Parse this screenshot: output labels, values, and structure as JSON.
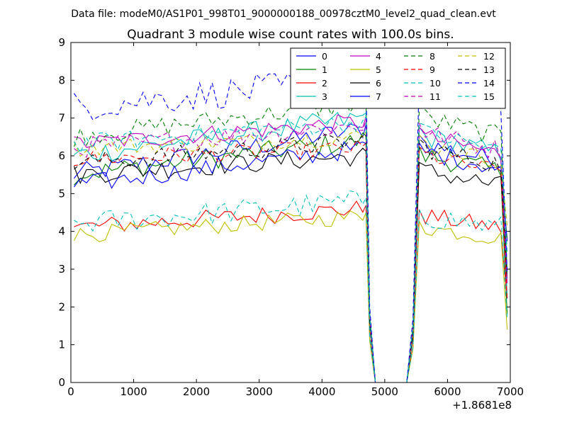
{
  "chart_data": {
    "type": "line",
    "suptitle": "Data file: modeM0/AS1P01_998T01_9000000188_00978cztM0_level2_quad_clean.evt",
    "title": "Quadrant 3 module wise count rates with 100.0s bins.",
    "xlabel": "",
    "ylabel": "",
    "x_offset_label": "+1.8681e8",
    "xlim": [
      0,
      7000
    ],
    "ylim": [
      0,
      9
    ],
    "xticks": [
      0,
      1000,
      2000,
      3000,
      4000,
      5000,
      6000,
      7000
    ],
    "yticks": [
      0,
      1,
      2,
      3,
      4,
      5,
      6,
      7,
      8,
      9
    ],
    "legend_position": "top-right",
    "gap": {
      "drop_start": 4700,
      "zero_start": 4850,
      "zero_end": 5350,
      "rise_end": 5550
    },
    "series": [
      {
        "name": "0",
        "color": "#0000ff",
        "dash": false,
        "start": 5.5,
        "end": 6.7,
        "post": 6.3
      },
      {
        "name": "1",
        "color": "#008000",
        "dash": false,
        "start": 5.5,
        "end": 6.4,
        "post": 6.0
      },
      {
        "name": "2",
        "color": "#ff0000",
        "dash": false,
        "start": 4.1,
        "end": 4.6,
        "post": 4.4
      },
      {
        "name": "3",
        "color": "#00bfbf",
        "dash": false,
        "start": 6.0,
        "end": 7.0,
        "post": 6.5
      },
      {
        "name": "4",
        "color": "#bf00bf",
        "dash": false,
        "start": 6.3,
        "end": 6.9,
        "post": 6.5
      },
      {
        "name": "5",
        "color": "#bfbf00",
        "dash": false,
        "start": 3.9,
        "end": 4.4,
        "post": 4.1
      },
      {
        "name": "6",
        "color": "#000000",
        "dash": false,
        "start": 5.5,
        "end": 6.0,
        "post": 5.6
      },
      {
        "name": "7",
        "color": "#0000ff",
        "dash": false,
        "start": 5.2,
        "end": 6.2,
        "post": 6.1
      },
      {
        "name": "8",
        "color": "#008000",
        "dash": true,
        "start": 6.5,
        "end": 7.4,
        "post": 7.0
      },
      {
        "name": "9",
        "color": "#ff0000",
        "dash": true,
        "start": 5.9,
        "end": 6.2,
        "post": 6.0
      },
      {
        "name": "10",
        "color": "#00bfbf",
        "dash": true,
        "start": 4.2,
        "end": 4.8,
        "post": 4.4
      },
      {
        "name": "11",
        "color": "#bf00bf",
        "dash": true,
        "start": 6.2,
        "end": 6.8,
        "post": 6.6
      },
      {
        "name": "12",
        "color": "#bfbf00",
        "dash": true,
        "start": 6.2,
        "end": 6.5,
        "post": 6.3
      },
      {
        "name": "13",
        "color": "#000000",
        "dash": true,
        "start": 5.8,
        "end": 6.4,
        "post": 6.2
      },
      {
        "name": "14",
        "color": "#0000ff",
        "dash": true,
        "start": 7.3,
        "end": 8.0,
        "post": 7.8
      },
      {
        "name": "15",
        "color": "#00bfbf",
        "dash": true,
        "start": 6.3,
        "end": 6.9,
        "post": 6.6
      }
    ]
  }
}
